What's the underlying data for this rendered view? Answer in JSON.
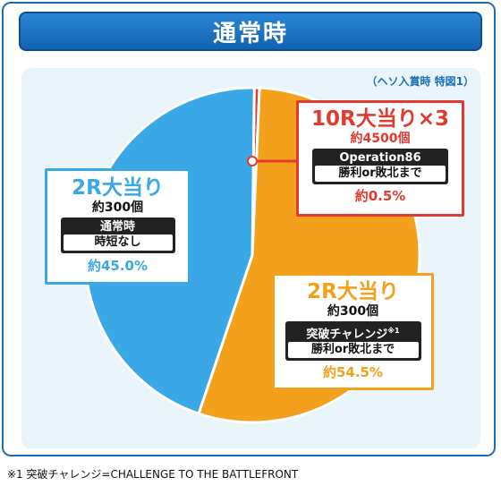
{
  "header": {
    "title": "通常時"
  },
  "note": "（ヘソ入賞時 特図1）",
  "colors": {
    "blue": "#3aa8e6",
    "orange": "#f3a11d",
    "red": "#e13a2f",
    "frame": "#1a6fb8"
  },
  "chart_data": {
    "type": "pie",
    "slices": [
      {
        "label": "10R大当り×3",
        "value": 0.5,
        "color": "#e13a2f"
      },
      {
        "label": "2R大当り",
        "value": 54.5,
        "color": "#f3a11d"
      },
      {
        "label": "2R大当り",
        "value": 45.0,
        "color": "#3aa8e6"
      }
    ]
  },
  "callouts": {
    "red": {
      "title": "10R大当り×3",
      "sub": "約4500個",
      "box_top": "Operation86",
      "box_bottom": "勝利or敗北まで",
      "pct": "約0.5%"
    },
    "orange": {
      "title": "2R大当り",
      "sub": "約300個",
      "box_top": "突破チャレンジ",
      "box_sup": "※1",
      "box_bottom": "勝利or敗北まで",
      "pct": "約54.5%"
    },
    "blue": {
      "title": "2R大当り",
      "sub": "約300個",
      "box_top": "通常時",
      "box_bottom": "時短なし",
      "pct": "約45.0%"
    }
  },
  "footnote": "※1 突破チャレンジ=CHALLENGE TO THE BATTLEFRONT"
}
